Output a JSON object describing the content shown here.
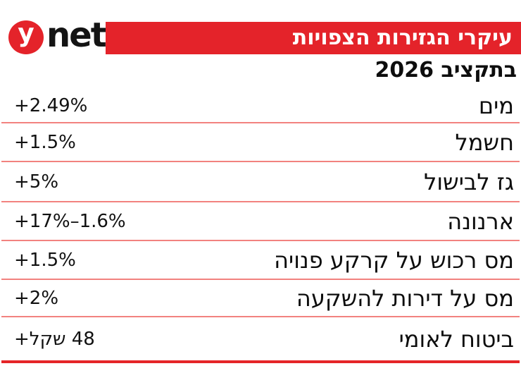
{
  "logo": {
    "y": "y",
    "net": "net"
  },
  "header": {
    "title": "עיקרי הגזירות הצפויות",
    "subtitle": "בתקציב 2026"
  },
  "colors": {
    "brand_red": "#e4232a",
    "separator_red": "#f2827f",
    "bottom_line_red": "#e52528",
    "text_black": "#0d0d0d",
    "banner_text_white": "#ffffff"
  },
  "table": {
    "rows": [
      {
        "label": "מים",
        "value": "+2.49%",
        "value_dir": "ltr"
      },
      {
        "label": "חשמל",
        "value": "+1.5%",
        "value_dir": "ltr"
      },
      {
        "label": "גז לבישול",
        "value": "+5%",
        "value_dir": "ltr"
      },
      {
        "label": "ארנונה",
        "value": "+17%–1.6%",
        "value_dir": "ltr"
      },
      {
        "label": "מס רכוש על קרקע פנויה",
        "value": "+1.5%",
        "value_dir": "ltr"
      },
      {
        "label": "מס על דירות להשקעה",
        "value": "+2%",
        "value_dir": "ltr"
      },
      {
        "label": "ביטוח לאומי",
        "value": "48 שקל+",
        "value_dir": "rtl"
      }
    ]
  },
  "chart_data": {
    "type": "table",
    "title": "עיקרי הגזירות הצפויות בתקציב 2026",
    "rows": [
      {
        "item": "מים",
        "change": "+2.49%"
      },
      {
        "item": "חשמל",
        "change": "+1.5%"
      },
      {
        "item": "גז לבישול",
        "change": "+5%"
      },
      {
        "item": "ארנונה",
        "change": "+1.6%–17%"
      },
      {
        "item": "מס רכוש על קרקע פנויה",
        "change": "+1.5%"
      },
      {
        "item": "מס על דירות להשקעה",
        "change": "+2%"
      },
      {
        "item": "ביטוח לאומי",
        "change": "+48 שקל"
      }
    ]
  }
}
